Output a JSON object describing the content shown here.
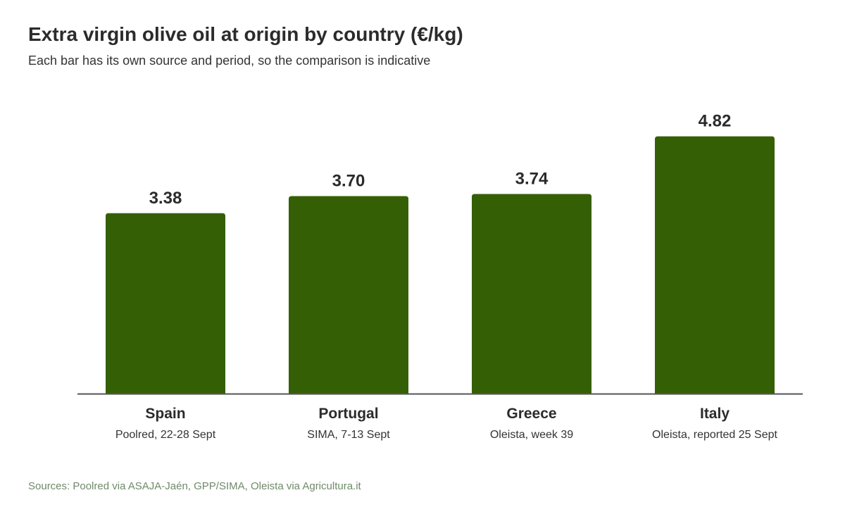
{
  "header": {
    "title": "Extra virgin olive oil at origin by country (€/kg)",
    "subtitle": "Each bar has its own source and period, so the comparison is indicative"
  },
  "footer": {
    "source": "Sources: Poolred via ASAJA-Jaén, GPP/SIMA, Oleista via Agricultura.it"
  },
  "colors": {
    "bar": "#355f04",
    "axis": "#555555",
    "text": "#2b2b2b",
    "source_text": "#6f8a6a"
  },
  "chart_data": {
    "type": "bar",
    "title": "Extra virgin olive oil at origin by country (€/kg)",
    "subtitle": "Each bar has its own source and period, so the comparison is indicative",
    "categories": [
      "Spain",
      "Portugal",
      "Greece",
      "Italy"
    ],
    "category_notes": [
      "Poolred, 22-28 Sept",
      "SIMA, 7-13 Sept",
      "Oleista, week 39",
      "Oleista, reported 25 Sept"
    ],
    "values": [
      3.38,
      3.7,
      3.74,
      4.82
    ],
    "value_labels": [
      "3.38",
      "3.70",
      "3.74",
      "4.82"
    ],
    "ylim": [
      0,
      5
    ],
    "grid": false,
    "legend": "none",
    "xlabel": "",
    "ylabel": ""
  }
}
